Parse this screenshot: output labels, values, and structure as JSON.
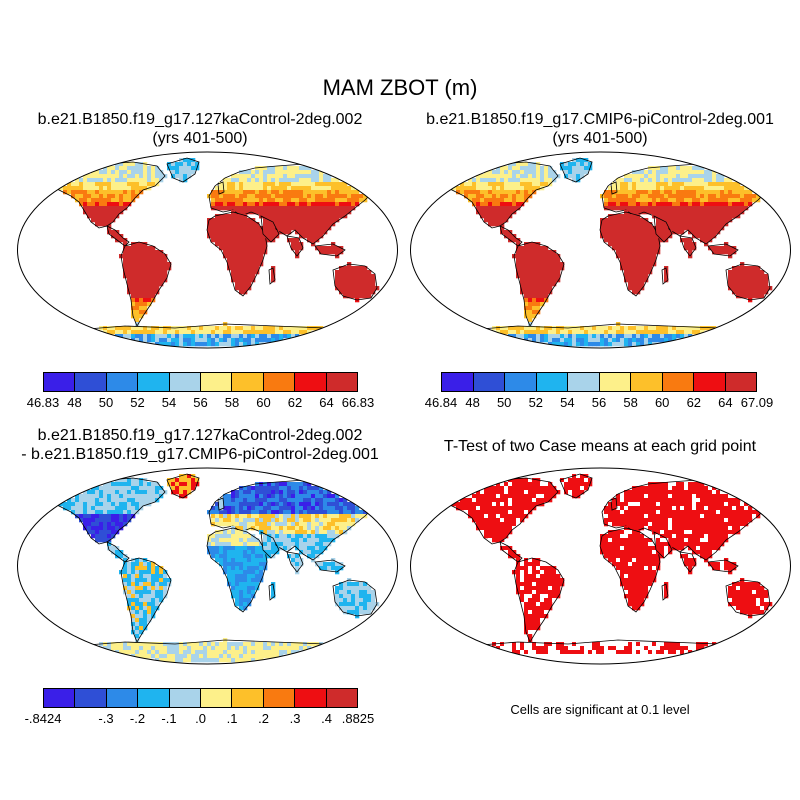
{
  "figure_title": "MAM ZBOT (m)",
  "panels": {
    "case1": {
      "title": "b.e21.B1850.f19_g17.127kaControl-2deg.002",
      "subtitle": "(yrs 401-500)"
    },
    "case2": {
      "title": "b.e21.B1850.f19_g17.CMIP6-piControl-2deg.001",
      "subtitle": "(yrs 401-500)"
    },
    "diff": {
      "title_line1": "b.e21.B1850.f19_g17.127kaControl-2deg.002",
      "title_line2": "- b.e21.B1850.f19_g17.CMIP6-piControl-2deg.001"
    },
    "ttest": {
      "title": "T-Test of two Case means at each grid point",
      "note": "Cells are significant at 0.1 level"
    }
  },
  "colorbars": {
    "colors": [
      "#3a1fe8",
      "#2f4fd6",
      "#2d8ae8",
      "#1fb4ef",
      "#a9d3ea",
      "#fdf08a",
      "#fdc02a",
      "#f97a10",
      "#ee0e12",
      "#cf2b2b"
    ],
    "case1_labels": [
      "46.83",
      "48",
      "50",
      "52",
      "54",
      "56",
      "58",
      "60",
      "62",
      "64",
      "66.83"
    ],
    "case2_labels": [
      "46.84",
      "48",
      "50",
      "52",
      "54",
      "56",
      "58",
      "60",
      "62",
      "64",
      "67.09"
    ],
    "diff_labels": [
      "-.8424",
      "",
      "-.3",
      "-.2",
      "-.1",
      ".0",
      ".1",
      ".2",
      ".3",
      ".4",
      ".8825"
    ]
  },
  "map_colors": {
    "land_hot": "#d12c2c",
    "sig": "#ee0e12",
    "coast": "#000000"
  }
}
